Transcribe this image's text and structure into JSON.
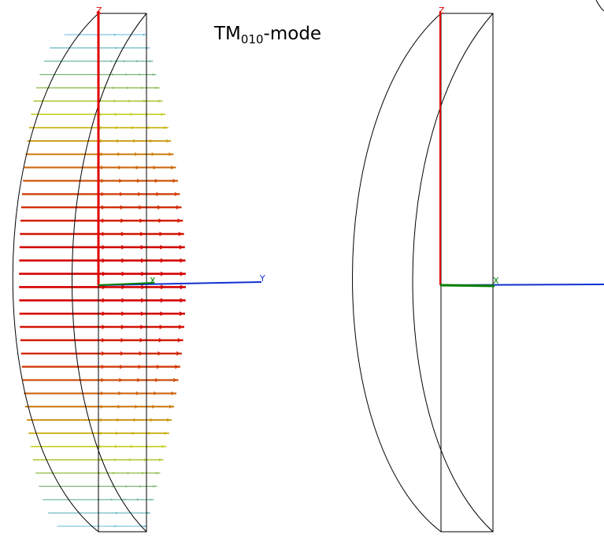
{
  "title": {
    "main": "TM",
    "subscript": "010",
    "suffix": "-mode"
  },
  "left_panel": {
    "axis_labels": {
      "z": "Z",
      "y": "Y",
      "x": "X"
    },
    "field_arrows": {
      "rows": 38,
      "scale": {
        "low": "#2a9fd6",
        "mid": "#c8d020",
        "high": "#d40000"
      }
    }
  },
  "right_panel": {
    "axis_labels": {
      "z": "Z",
      "x": "X"
    }
  },
  "colors": {
    "z_axis": "#e00000",
    "y_axis": "#1030d0",
    "x_axis": "#008000",
    "outline": "#000000"
  }
}
